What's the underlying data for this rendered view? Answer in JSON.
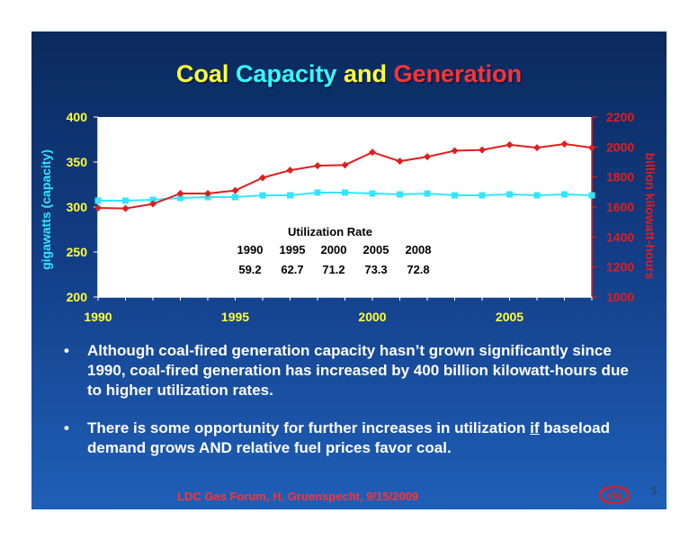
{
  "title": {
    "part1": "Coal",
    "part2": "Capacity",
    "part3": "and",
    "part4": "Generation"
  },
  "chart_data": {
    "type": "line",
    "x": [
      1990,
      1991,
      1992,
      1993,
      1994,
      1995,
      1996,
      1997,
      1998,
      1999,
      2000,
      2001,
      2002,
      2003,
      2004,
      2005,
      2006,
      2007,
      2008
    ],
    "x_ticks": [
      "1990",
      "1995",
      "2000",
      "2005"
    ],
    "xlim": [
      1990,
      2008
    ],
    "ylabel_left": "gigawatts (capacity)",
    "ylabel_right": "billion kilowatt-hours",
    "y_left_ticks": [
      "400",
      "350",
      "300",
      "250",
      "200"
    ],
    "y_right_ticks": [
      "2200",
      "2000",
      "1800",
      "1600",
      "1400",
      "1200",
      "1000"
    ],
    "ylim_left": [
      200,
      400
    ],
    "ylim_right": [
      1000,
      2200
    ],
    "series": [
      {
        "axis": "left",
        "color": "#33e6ff",
        "values": [
          307,
          307,
          308,
          310,
          311,
          311,
          313,
          313,
          316,
          316,
          315,
          314,
          315,
          313,
          313,
          314,
          313,
          314,
          313
        ]
      },
      {
        "axis": "right",
        "color": "#e01e1e",
        "values": [
          1594,
          1590,
          1620,
          1690,
          1690,
          1710,
          1795,
          1845,
          1875,
          1880,
          1965,
          1905,
          1935,
          1975,
          1980,
          2015,
          1995,
          2020,
          1995
        ]
      }
    ],
    "annotation": {
      "heading": "Utilization Rate",
      "years": [
        "1990",
        "1995",
        "2000",
        "2005",
        "2008"
      ],
      "rates": [
        "59.2",
        "62.7",
        "71.2",
        "73.3",
        "72.8"
      ]
    }
  },
  "bullets": [
    {
      "dot": "•",
      "text": "Although coal-fired generation capacity hasn’t grown significantly since 1990, coal-fired generation has increased by 400 billion kilowatt-hours due to higher utilization rates."
    },
    {
      "dot": "•",
      "pre": "There is some opportunity for further increases in utilization ",
      "emph": "if",
      "post": " baseload demand grows AND relative fuel prices favor coal."
    }
  ],
  "footer": "LDC Gas Forum, H. Gruenspecht, 9/15/2009",
  "page_number": "5",
  "logo": {
    "text": "eia",
    "icon": "eia-logo"
  }
}
